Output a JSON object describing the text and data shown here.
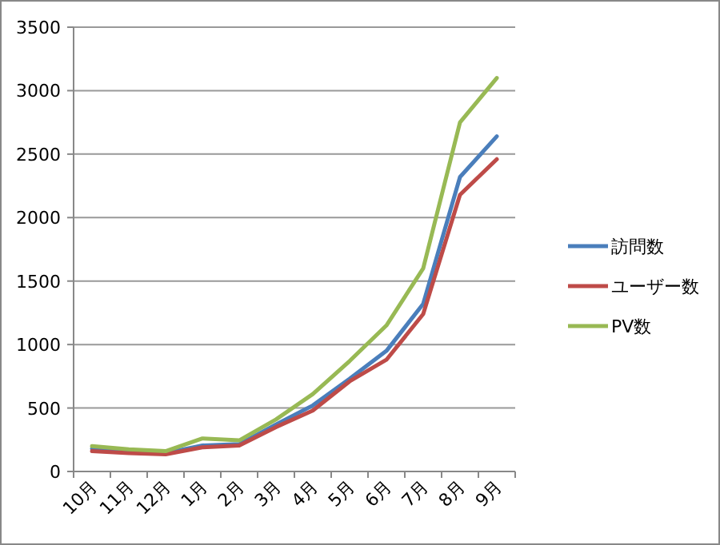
{
  "chart_data": {
    "type": "line",
    "categories": [
      "10月",
      "11月",
      "12月",
      "1月",
      "2月",
      "3月",
      "4月",
      "5月",
      "6月",
      "7月",
      "8月",
      "9月"
    ],
    "series": [
      {
        "name": "訪問数",
        "color": "#4a7ebb",
        "values": [
          180,
          160,
          145,
          205,
          215,
          370,
          520,
          730,
          950,
          1320,
          2320,
          2640
        ]
      },
      {
        "name": "ユーザー数",
        "color": "#be4b48",
        "values": [
          160,
          145,
          135,
          190,
          205,
          350,
          480,
          710,
          880,
          1240,
          2180,
          2460
        ]
      },
      {
        "name": "PV数",
        "color": "#98b954",
        "values": [
          200,
          175,
          160,
          260,
          245,
          410,
          610,
          870,
          1150,
          1600,
          2750,
          3100
        ]
      }
    ],
    "ylim": [
      0,
      3500
    ],
    "yticks": [
      0,
      500,
      1000,
      1500,
      2000,
      2500,
      3000,
      3500
    ],
    "grid": "y",
    "legend": "right",
    "marker": "none",
    "line_style": "solid"
  }
}
